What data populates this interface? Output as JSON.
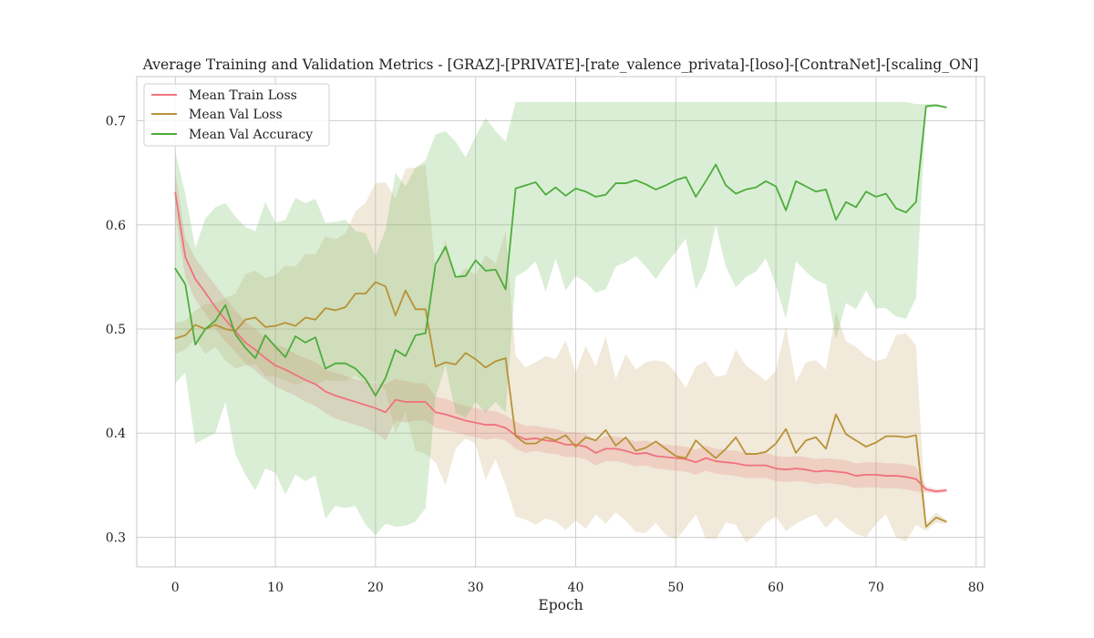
{
  "chart_data": {
    "type": "line",
    "title": "Average Training and Validation Metrics - [GRAZ]-[PRIVATE]-[rate_valence_privata]-[loso]-[ContraNet]-[scaling_ON]",
    "xlabel": "Epoch",
    "ylabel": "",
    "xlim": [
      -3.85,
      80.85
    ],
    "ylim": [
      0.2715,
      0.7425
    ],
    "xticks": [
      0,
      10,
      20,
      30,
      40,
      50,
      60,
      70,
      80
    ],
    "yticks": [
      0.3,
      0.4,
      0.5,
      0.6,
      0.7
    ],
    "ytick_labels": [
      "0.3",
      "0.4",
      "0.5",
      "0.6",
      "0.7"
    ],
    "grid": true,
    "legend_position": "top-left",
    "series": [
      {
        "name": "Mean Train Loss",
        "color": "#f0727e",
        "band_color": "#f0727e",
        "band_opacity": 0.25,
        "mean": [
          0.631,
          0.569,
          0.548,
          0.535,
          0.521,
          0.509,
          0.498,
          0.487,
          0.48,
          0.472,
          0.465,
          0.461,
          0.456,
          0.451,
          0.447,
          0.44,
          0.436,
          0.433,
          0.43,
          0.427,
          0.424,
          0.42,
          0.432,
          0.43,
          0.43,
          0.43,
          0.42,
          0.418,
          0.415,
          0.412,
          0.41,
          0.408,
          0.408,
          0.405,
          0.398,
          0.394,
          0.395,
          0.393,
          0.392,
          0.389,
          0.389,
          0.387,
          0.381,
          0.385,
          0.385,
          0.383,
          0.38,
          0.381,
          0.378,
          0.377,
          0.376,
          0.375,
          0.372,
          0.376,
          0.373,
          0.372,
          0.371,
          0.369,
          0.369,
          0.369,
          0.366,
          0.365,
          0.366,
          0.365,
          0.363,
          0.364,
          0.363,
          0.362,
          0.359,
          0.36,
          0.36,
          0.359,
          0.359,
          0.358,
          0.356,
          0.346,
          0.344,
          0.345
        ],
        "lower": [
          0.611,
          0.55,
          0.528,
          0.515,
          0.5,
          0.488,
          0.478,
          0.467,
          0.46,
          0.452,
          0.445,
          0.44,
          0.436,
          0.43,
          0.426,
          0.419,
          0.414,
          0.411,
          0.408,
          0.405,
          0.4,
          0.393,
          0.412,
          0.41,
          0.412,
          0.412,
          0.405,
          0.403,
          0.401,
          0.398,
          0.396,
          0.394,
          0.395,
          0.393,
          0.385,
          0.381,
          0.383,
          0.381,
          0.38,
          0.377,
          0.377,
          0.375,
          0.369,
          0.373,
          0.373,
          0.371,
          0.368,
          0.369,
          0.366,
          0.365,
          0.364,
          0.363,
          0.36,
          0.364,
          0.361,
          0.36,
          0.359,
          0.357,
          0.357,
          0.357,
          0.354,
          0.353,
          0.354,
          0.353,
          0.351,
          0.352,
          0.351,
          0.35,
          0.347,
          0.348,
          0.348,
          0.347,
          0.347,
          0.346,
          0.344,
          0.343,
          0.342,
          0.343
        ],
        "upper": [
          0.651,
          0.588,
          0.568,
          0.555,
          0.542,
          0.53,
          0.518,
          0.507,
          0.5,
          0.492,
          0.485,
          0.482,
          0.476,
          0.472,
          0.468,
          0.461,
          0.458,
          0.455,
          0.452,
          0.449,
          0.448,
          0.447,
          0.452,
          0.45,
          0.448,
          0.448,
          0.435,
          0.433,
          0.429,
          0.426,
          0.424,
          0.422,
          0.421,
          0.417,
          0.411,
          0.407,
          0.407,
          0.405,
          0.404,
          0.401,
          0.401,
          0.399,
          0.393,
          0.397,
          0.397,
          0.395,
          0.392,
          0.393,
          0.39,
          0.389,
          0.388,
          0.387,
          0.384,
          0.388,
          0.385,
          0.384,
          0.383,
          0.381,
          0.381,
          0.381,
          0.378,
          0.377,
          0.378,
          0.377,
          0.375,
          0.376,
          0.375,
          0.374,
          0.371,
          0.372,
          0.372,
          0.371,
          0.371,
          0.37,
          0.368,
          0.349,
          0.346,
          0.347
        ]
      },
      {
        "name": "Mean Val Loss",
        "color": "#b89237",
        "band_color": "#c9a96a",
        "band_opacity": 0.25,
        "mean": [
          0.491,
          0.494,
          0.504,
          0.5,
          0.504,
          0.5,
          0.498,
          0.509,
          0.511,
          0.502,
          0.503,
          0.506,
          0.503,
          0.511,
          0.509,
          0.52,
          0.518,
          0.521,
          0.534,
          0.534,
          0.545,
          0.541,
          0.513,
          0.537,
          0.519,
          0.519,
          0.464,
          0.468,
          0.466,
          0.477,
          0.471,
          0.463,
          0.469,
          0.472,
          0.397,
          0.39,
          0.39,
          0.396,
          0.393,
          0.398,
          0.387,
          0.396,
          0.393,
          0.403,
          0.388,
          0.396,
          0.383,
          0.386,
          0.392,
          0.385,
          0.378,
          0.376,
          0.393,
          0.384,
          0.376,
          0.385,
          0.396,
          0.38,
          0.38,
          0.382,
          0.39,
          0.404,
          0.381,
          0.393,
          0.396,
          0.385,
          0.418,
          0.399,
          0.393,
          0.387,
          0.391,
          0.397,
          0.397,
          0.396,
          0.398,
          0.31,
          0.319,
          0.315
        ],
        "lower": [
          0.476,
          0.48,
          0.49,
          0.476,
          0.483,
          0.47,
          0.462,
          0.465,
          0.466,
          0.455,
          0.454,
          0.451,
          0.446,
          0.45,
          0.446,
          0.451,
          0.45,
          0.45,
          0.455,
          0.447,
          0.45,
          0.441,
          0.4,
          0.42,
          0.383,
          0.38,
          0.372,
          0.35,
          0.385,
          0.395,
          0.39,
          0.355,
          0.375,
          0.35,
          0.32,
          0.317,
          0.312,
          0.318,
          0.315,
          0.307,
          0.316,
          0.308,
          0.322,
          0.313,
          0.324,
          0.316,
          0.305,
          0.304,
          0.314,
          0.302,
          0.298,
          0.309,
          0.322,
          0.299,
          0.298,
          0.314,
          0.312,
          0.295,
          0.302,
          0.314,
          0.32,
          0.306,
          0.313,
          0.318,
          0.322,
          0.309,
          0.319,
          0.31,
          0.303,
          0.3,
          0.313,
          0.322,
          0.3,
          0.296,
          0.312,
          0.306,
          0.314,
          0.313
        ],
        "upper": [
          0.506,
          0.508,
          0.518,
          0.524,
          0.525,
          0.53,
          0.534,
          0.553,
          0.556,
          0.549,
          0.552,
          0.561,
          0.56,
          0.572,
          0.572,
          0.589,
          0.586,
          0.592,
          0.613,
          0.621,
          0.64,
          0.641,
          0.626,
          0.654,
          0.655,
          0.658,
          0.556,
          0.586,
          0.547,
          0.559,
          0.552,
          0.571,
          0.563,
          0.594,
          0.474,
          0.463,
          0.468,
          0.474,
          0.471,
          0.489,
          0.458,
          0.484,
          0.464,
          0.493,
          0.452,
          0.476,
          0.461,
          0.468,
          0.47,
          0.468,
          0.458,
          0.443,
          0.464,
          0.469,
          0.454,
          0.456,
          0.48,
          0.465,
          0.458,
          0.45,
          0.46,
          0.502,
          0.449,
          0.468,
          0.47,
          0.461,
          0.517,
          0.488,
          0.483,
          0.474,
          0.469,
          0.472,
          0.494,
          0.496,
          0.484,
          0.314,
          0.324,
          0.317
        ]
      },
      {
        "name": "Mean Val Accuracy",
        "color": "#4eac3b",
        "band_color": "#6cbd5a",
        "band_opacity": 0.25,
        "mean": [
          0.558,
          0.543,
          0.485,
          0.5,
          0.508,
          0.523,
          0.495,
          0.482,
          0.472,
          0.494,
          0.483,
          0.473,
          0.493,
          0.487,
          0.492,
          0.462,
          0.467,
          0.467,
          0.462,
          0.452,
          0.436,
          0.453,
          0.48,
          0.474,
          0.494,
          0.496,
          0.562,
          0.579,
          0.55,
          0.551,
          0.566,
          0.556,
          0.557,
          0.538,
          0.635,
          0.638,
          0.641,
          0.629,
          0.636,
          0.628,
          0.635,
          0.632,
          0.627,
          0.629,
          0.64,
          0.64,
          0.643,
          0.639,
          0.634,
          0.638,
          0.643,
          0.646,
          0.627,
          0.642,
          0.658,
          0.638,
          0.63,
          0.634,
          0.636,
          0.642,
          0.637,
          0.614,
          0.642,
          0.637,
          0.632,
          0.634,
          0.605,
          0.622,
          0.617,
          0.632,
          0.627,
          0.63,
          0.616,
          0.612,
          0.622,
          0.714,
          0.715,
          0.713
        ],
        "lower": [
          0.448,
          0.458,
          0.39,
          0.395,
          0.4,
          0.43,
          0.38,
          0.36,
          0.345,
          0.366,
          0.362,
          0.341,
          0.36,
          0.354,
          0.359,
          0.318,
          0.33,
          0.328,
          0.33,
          0.312,
          0.302,
          0.313,
          0.31,
          0.311,
          0.315,
          0.328,
          0.435,
          0.465,
          0.42,
          0.415,
          0.43,
          0.42,
          0.43,
          0.42,
          0.55,
          0.556,
          0.565,
          0.536,
          0.568,
          0.537,
          0.551,
          0.545,
          0.535,
          0.538,
          0.56,
          0.564,
          0.57,
          0.56,
          0.548,
          0.562,
          0.574,
          0.587,
          0.538,
          0.557,
          0.6,
          0.56,
          0.54,
          0.55,
          0.555,
          0.568,
          0.542,
          0.51,
          0.565,
          0.555,
          0.547,
          0.543,
          0.49,
          0.525,
          0.519,
          0.537,
          0.52,
          0.52,
          0.512,
          0.51,
          0.53,
          0.712,
          0.713,
          0.712
        ],
        "upper": [
          0.67,
          0.63,
          0.578,
          0.606,
          0.617,
          0.621,
          0.608,
          0.598,
          0.594,
          0.622,
          0.602,
          0.605,
          0.626,
          0.621,
          0.625,
          0.602,
          0.603,
          0.605,
          0.594,
          0.592,
          0.57,
          0.595,
          0.65,
          0.637,
          0.655,
          0.662,
          0.687,
          0.69,
          0.68,
          0.665,
          0.685,
          0.703,
          0.69,
          0.68,
          0.718,
          0.718,
          0.718,
          0.718,
          0.718,
          0.718,
          0.718,
          0.718,
          0.718,
          0.718,
          0.718,
          0.718,
          0.718,
          0.718,
          0.718,
          0.718,
          0.718,
          0.718,
          0.718,
          0.718,
          0.718,
          0.718,
          0.718,
          0.718,
          0.718,
          0.718,
          0.718,
          0.718,
          0.718,
          0.718,
          0.718,
          0.718,
          0.718,
          0.718,
          0.718,
          0.718,
          0.718,
          0.718,
          0.718,
          0.718,
          0.716,
          0.716,
          0.716,
          0.714
        ]
      }
    ]
  }
}
